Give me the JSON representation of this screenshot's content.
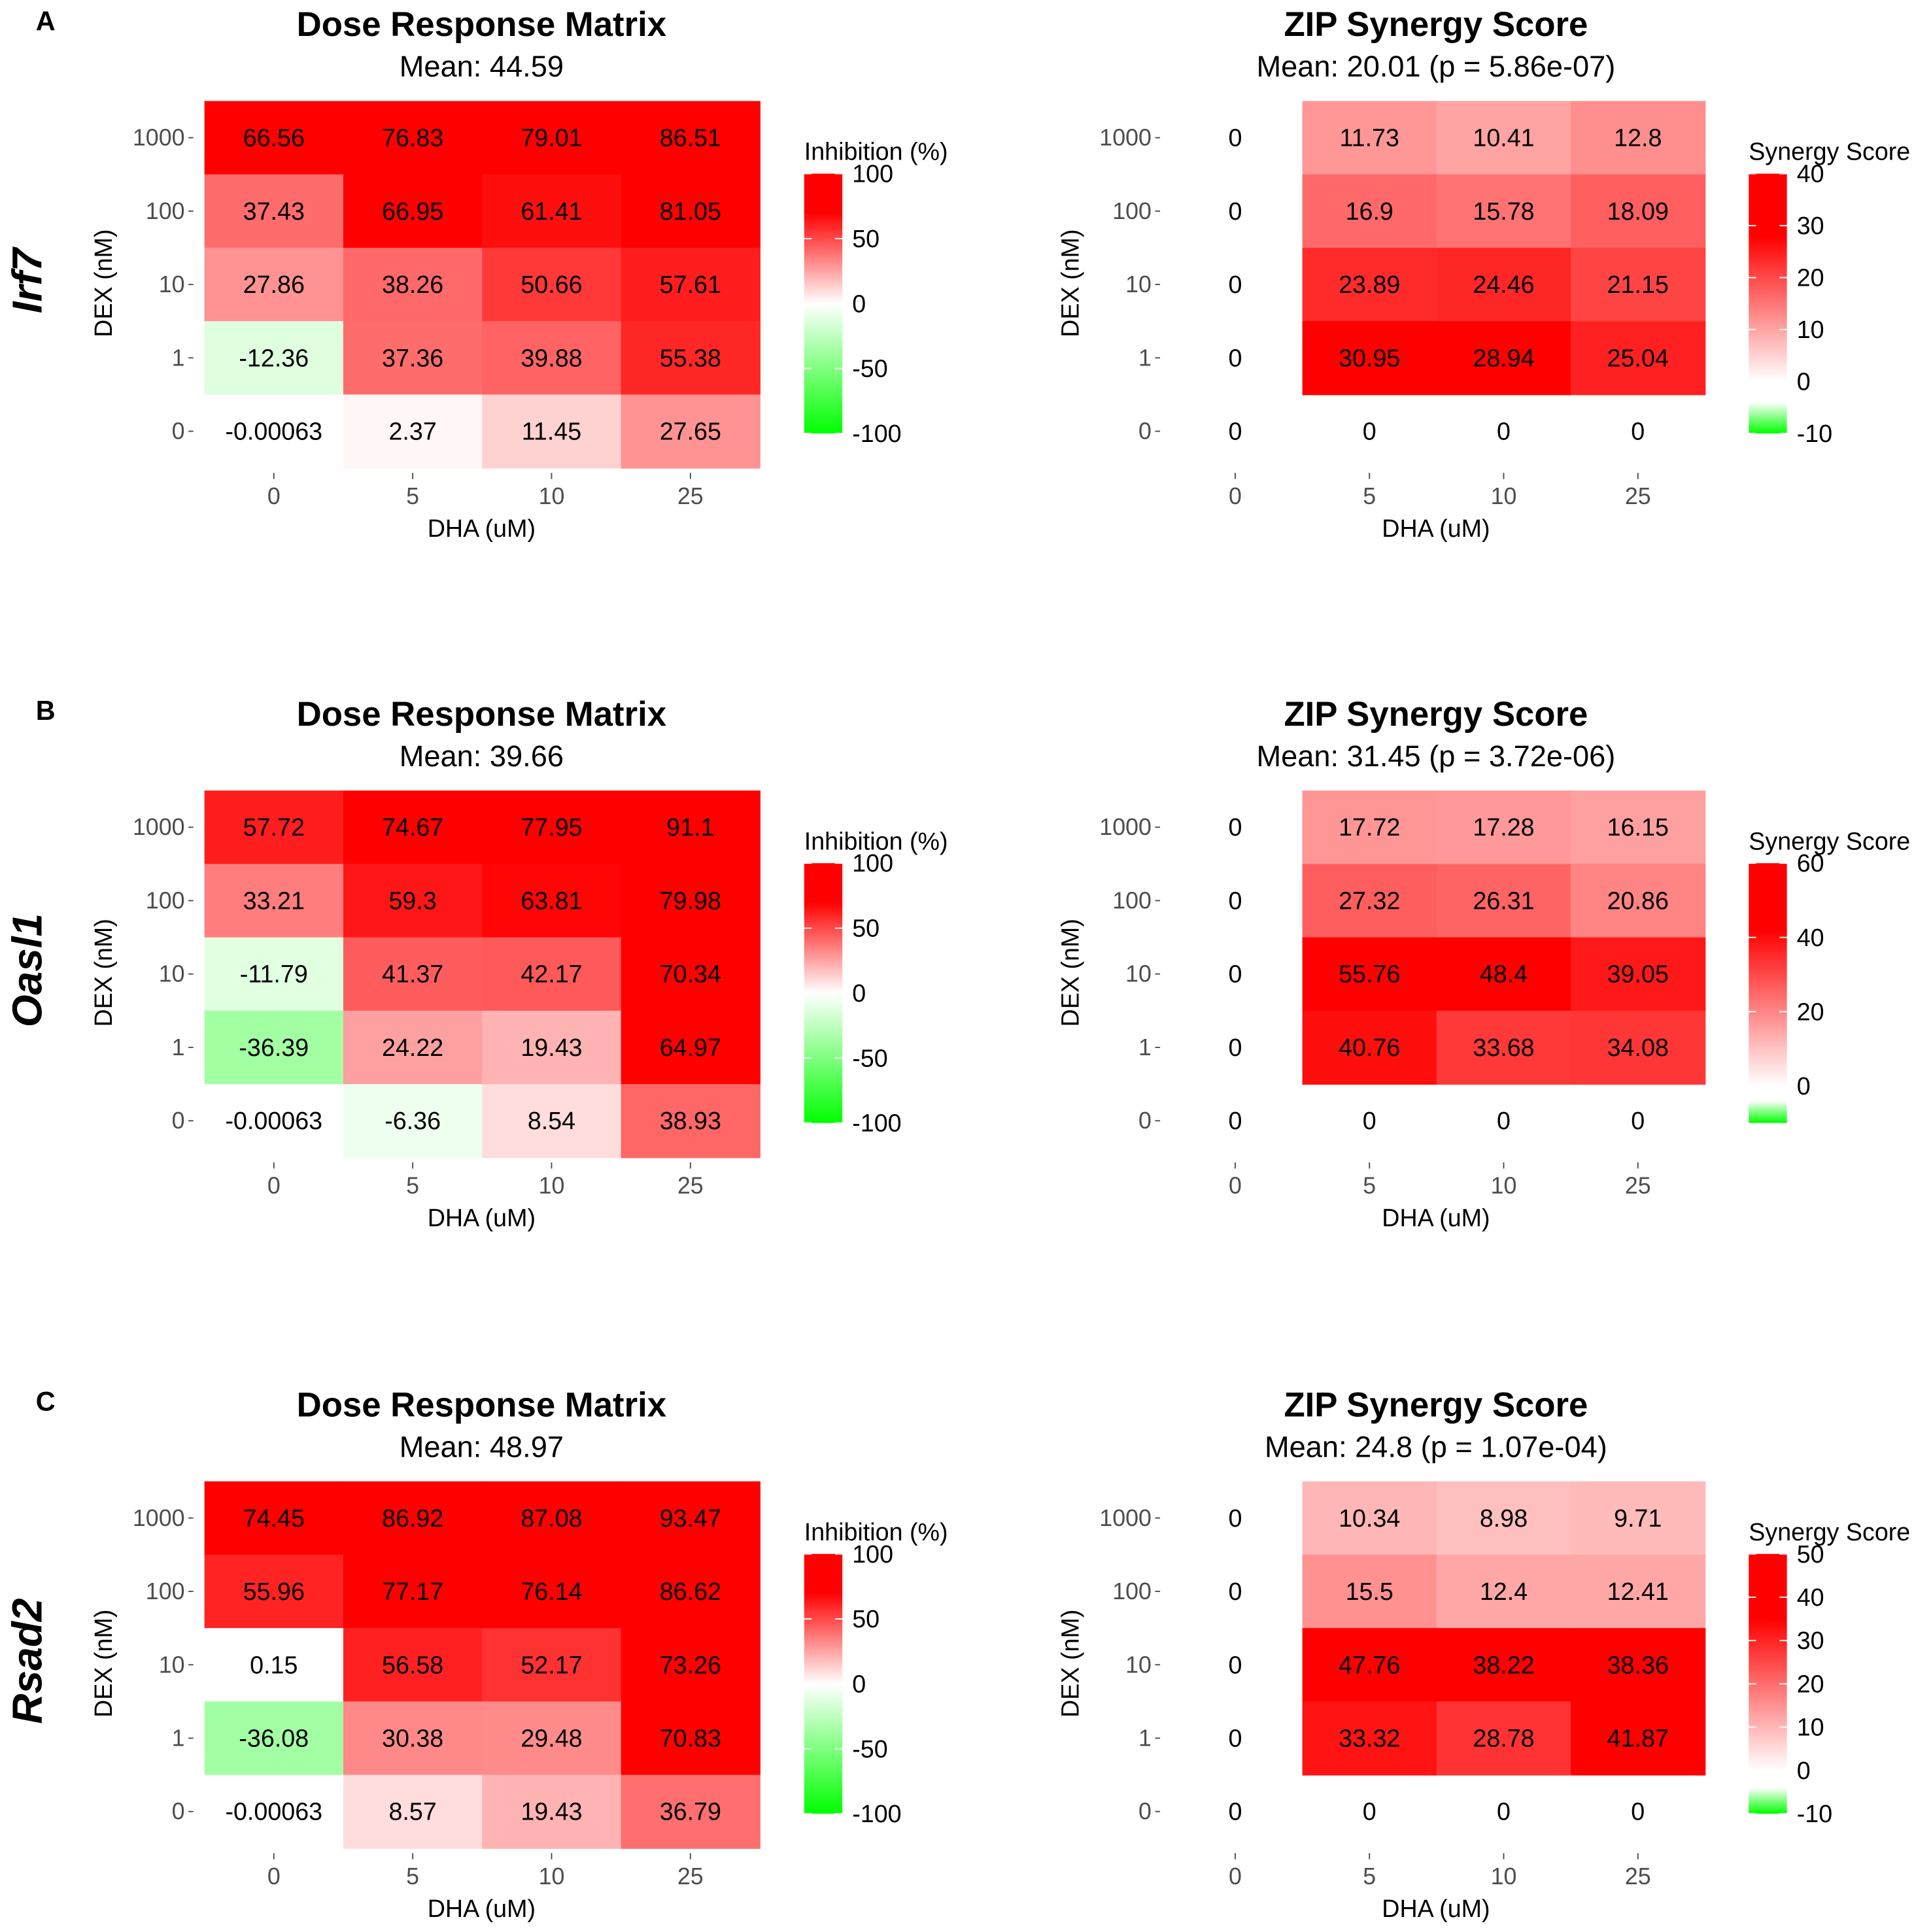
{
  "panels": [
    {
      "letter": "A",
      "gene": "Irf7"
    },
    {
      "letter": "B",
      "gene": "Oasl1"
    },
    {
      "letter": "C",
      "gene": "Rsad2"
    }
  ],
  "chart_data": [
    {
      "type": "heatmap",
      "panel": "A",
      "title": "Dose Response Matrix",
      "subtitle": "Mean: 44.59",
      "xlabel": "DHA (uM)",
      "ylabel": "DEX (nM)",
      "x_ticks": [
        "0",
        "5",
        "10",
        "25"
      ],
      "y_ticks": [
        "1000",
        "100",
        "10",
        "1",
        "0"
      ],
      "legend_title": "Inhibition (%)",
      "legend_ticks": [
        "100",
        "50",
        "0",
        "-50",
        "-100"
      ],
      "legend_tick_values": [
        100,
        50,
        0,
        -50,
        -100
      ],
      "range": [
        -100,
        100
      ],
      "values": [
        [
          "66.56",
          "76.83",
          "79.01",
          "86.51"
        ],
        [
          "37.43",
          "66.95",
          "61.41",
          "81.05"
        ],
        [
          "27.86",
          "38.26",
          "50.66",
          "57.61"
        ],
        [
          "-12.36",
          "37.36",
          "39.88",
          "55.38"
        ],
        [
          "-0.00063",
          "2.37",
          "11.45",
          "27.65"
        ]
      ]
    },
    {
      "type": "heatmap",
      "panel": "A",
      "title": "ZIP Synergy Score",
      "subtitle": "Mean: 20.01 (p = 5.86e-07)",
      "xlabel": "DHA (uM)",
      "ylabel": "DEX (nM)",
      "x_ticks": [
        "0",
        "5",
        "10",
        "25"
      ],
      "y_ticks": [
        "1000",
        "100",
        "10",
        "1",
        "0"
      ],
      "legend_title": "Synergy Score",
      "legend_ticks": [
        "40",
        "30",
        "20",
        "10",
        "0",
        "-10"
      ],
      "legend_tick_values": [
        40,
        30,
        20,
        10,
        0,
        -10
      ],
      "range": [
        -10,
        40
      ],
      "values": [
        [
          "0",
          "11.73",
          "10.41",
          "12.8"
        ],
        [
          "0",
          "16.9",
          "15.78",
          "18.09"
        ],
        [
          "0",
          "23.89",
          "24.46",
          "21.15"
        ],
        [
          "0",
          "30.95",
          "28.94",
          "25.04"
        ],
        [
          "0",
          "0",
          "0",
          "0"
        ]
      ]
    },
    {
      "type": "heatmap",
      "panel": "B",
      "title": "Dose Response Matrix",
      "subtitle": "Mean: 39.66",
      "xlabel": "DHA (uM)",
      "ylabel": "DEX (nM)",
      "x_ticks": [
        "0",
        "5",
        "10",
        "25"
      ],
      "y_ticks": [
        "1000",
        "100",
        "10",
        "1",
        "0"
      ],
      "legend_title": "Inhibition (%)",
      "legend_ticks": [
        "100",
        "50",
        "0",
        "-50",
        "-100"
      ],
      "legend_tick_values": [
        100,
        50,
        0,
        -50,
        -100
      ],
      "range": [
        -100,
        100
      ],
      "values": [
        [
          "57.72",
          "74.67",
          "77.95",
          "91.1"
        ],
        [
          "33.21",
          "59.3",
          "63.81",
          "79.98"
        ],
        [
          "-11.79",
          "41.37",
          "42.17",
          "70.34"
        ],
        [
          "-36.39",
          "24.22",
          "19.43",
          "64.97"
        ],
        [
          "-0.00063",
          "-6.36",
          "8.54",
          "38.93"
        ]
      ]
    },
    {
      "type": "heatmap",
      "panel": "B",
      "title": "ZIP Synergy Score",
      "subtitle": "Mean: 31.45 (p = 3.72e-06)",
      "xlabel": "DHA (uM)",
      "ylabel": "DEX (nM)",
      "x_ticks": [
        "0",
        "5",
        "10",
        "25"
      ],
      "y_ticks": [
        "1000",
        "100",
        "10",
        "1",
        "0"
      ],
      "legend_title": "Synergy Score",
      "legend_ticks": [
        "60",
        "40",
        "20",
        "0"
      ],
      "legend_tick_values": [
        60,
        40,
        20,
        0
      ],
      "range": [
        -10,
        60
      ],
      "values": [
        [
          "0",
          "17.72",
          "17.28",
          "16.15"
        ],
        [
          "0",
          "27.32",
          "26.31",
          "20.86"
        ],
        [
          "0",
          "55.76",
          "48.4",
          "39.05"
        ],
        [
          "0",
          "40.76",
          "33.68",
          "34.08"
        ],
        [
          "0",
          "0",
          "0",
          "0"
        ]
      ]
    },
    {
      "type": "heatmap",
      "panel": "C",
      "title": "Dose Response Matrix",
      "subtitle": "Mean: 48.97",
      "xlabel": "DHA (uM)",
      "ylabel": "DEX (nM)",
      "x_ticks": [
        "0",
        "5",
        "10",
        "25"
      ],
      "y_ticks": [
        "1000",
        "100",
        "10",
        "1",
        "0"
      ],
      "legend_title": "Inhibition (%)",
      "legend_ticks": [
        "100",
        "50",
        "0",
        "-50",
        "-100"
      ],
      "legend_tick_values": [
        100,
        50,
        0,
        -50,
        -100
      ],
      "range": [
        -100,
        100
      ],
      "values": [
        [
          "74.45",
          "86.92",
          "87.08",
          "93.47"
        ],
        [
          "55.96",
          "77.17",
          "76.14",
          "86.62"
        ],
        [
          "0.15",
          "56.58",
          "52.17",
          "73.26"
        ],
        [
          "-36.08",
          "30.38",
          "29.48",
          "70.83"
        ],
        [
          "-0.00063",
          "8.57",
          "19.43",
          "36.79"
        ]
      ]
    },
    {
      "type": "heatmap",
      "panel": "C",
      "title": "ZIP Synergy Score",
      "subtitle": "Mean: 24.8 (p = 1.07e-04)",
      "xlabel": "DHA (uM)",
      "ylabel": "DEX (nM)",
      "x_ticks": [
        "0",
        "5",
        "10",
        "25"
      ],
      "y_ticks": [
        "1000",
        "100",
        "10",
        "1",
        "0"
      ],
      "legend_title": "Synergy Score",
      "legend_ticks": [
        "50",
        "40",
        "30",
        "20",
        "10",
        "0",
        "-10"
      ],
      "legend_tick_values": [
        50,
        40,
        30,
        20,
        10,
        0,
        -10
      ],
      "range": [
        -10,
        50
      ],
      "values": [
        [
          "0",
          "10.34",
          "8.98",
          "9.71"
        ],
        [
          "0",
          "15.5",
          "12.4",
          "12.41"
        ],
        [
          "0",
          "47.76",
          "38.22",
          "38.36"
        ],
        [
          "0",
          "33.32",
          "28.78",
          "41.87"
        ],
        [
          "0",
          "0",
          "0",
          "0"
        ]
      ]
    }
  ]
}
